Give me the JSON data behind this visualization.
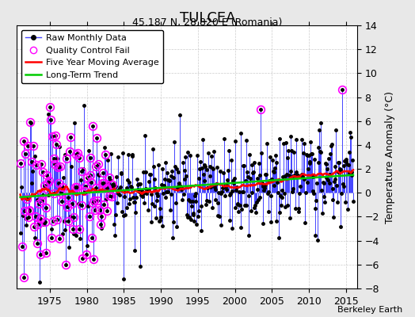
{
  "title": "TULCEA",
  "subtitle": "45.187 N, 28.820 E (Romania)",
  "credit": "Berkeley Earth",
  "ylabel_right": "Temperature Anomaly (°C)",
  "x_min": 1970.5,
  "x_max": 2016.5,
  "y_min": -8,
  "y_max": 14,
  "yticks": [
    -8,
    -6,
    -4,
    -2,
    0,
    2,
    4,
    6,
    8,
    10,
    12,
    14
  ],
  "xticks": [
    1975,
    1980,
    1985,
    1990,
    1995,
    2000,
    2005,
    2010,
    2015
  ],
  "bg_color": "#e8e8e8",
  "plot_bg_color": "#ffffff",
  "stem_color": "#4444ff",
  "dot_color": "#000000",
  "ma_color": "#ff0000",
  "trend_color": "#00cc00",
  "qc_color": "#ff00ff",
  "legend_items": [
    "Raw Monthly Data",
    "Quality Control Fail",
    "Five Year Moving Average",
    "Long-Term Trend"
  ]
}
